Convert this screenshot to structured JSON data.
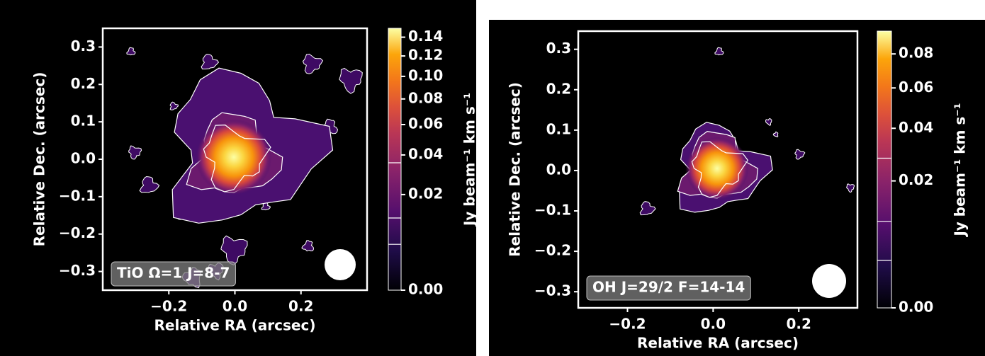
{
  "chart_data": [
    {
      "type": "image",
      "annotation": "TiO  Ω=1 J=8-7",
      "xlabel": "Relative RA (arcsec)",
      "ylabel": "Relative Dec. (arcsec)",
      "xlim": [
        -0.4,
        0.4
      ],
      "ylim": [
        -0.35,
        0.35
      ],
      "xticks": [
        {
          "value": -0.2,
          "label": "−0.2"
        },
        {
          "value": 0,
          "label": "0.0"
        },
        0.2
      ],
      "yticks": [
        {
          "value": -0.3,
          "label": "−0.3"
        },
        {
          "value": -0.2,
          "label": "−0.2"
        },
        {
          "value": -0.1,
          "label": "−0.1"
        },
        {
          "value": 0,
          "label": "0.0"
        },
        0.1,
        0.2,
        0.3
      ],
      "colorbar": {
        "label": "Jy beam⁻¹ km s⁻¹",
        "colormap": "inferno",
        "scale": "sqrt",
        "lim": [
          0,
          0.15
        ],
        "ticks": [
          {
            "value": 0,
            "label": "0.00"
          },
          0.02,
          0.04,
          0.06,
          0.08,
          {
            "value": 0.1,
            "label": "0.10"
          },
          0.12,
          0.14
        ],
        "contour_levels": [
          0.0046,
          0.0114,
          0.0355
        ]
      }
    },
    {
      "type": "image",
      "annotation": "OH  J=29/2 F=14-14",
      "xlabel": "Relative RA (arcsec)",
      "ylabel": "Relative Dec. (arcsec)",
      "xlim": [
        -0.315,
        0.337
      ],
      "ylim": [
        -0.34,
        0.345
      ],
      "xticks": [
        {
          "value": -0.2,
          "label": "−0.2"
        },
        {
          "value": 0,
          "label": "0.0"
        },
        0.2
      ],
      "yticks": [
        {
          "value": -0.3,
          "label": "−0.3"
        },
        {
          "value": -0.2,
          "label": "−0.2"
        },
        {
          "value": -0.1,
          "label": "−0.1"
        },
        {
          "value": 0,
          "label": "0.0"
        },
        0.1,
        0.2,
        0.3
      ],
      "colorbar": {
        "label": "Jy beam⁻¹ km s⁻¹",
        "colormap": "inferno",
        "scale": "sqrt",
        "lim": [
          0,
          0.095
        ],
        "ticks": [
          {
            "value": 0,
            "label": "0.00"
          },
          0.02,
          0.04,
          0.06,
          0.08
        ],
        "contour_levels": [
          0.0028,
          0.0093,
          0.0278
        ]
      }
    }
  ]
}
